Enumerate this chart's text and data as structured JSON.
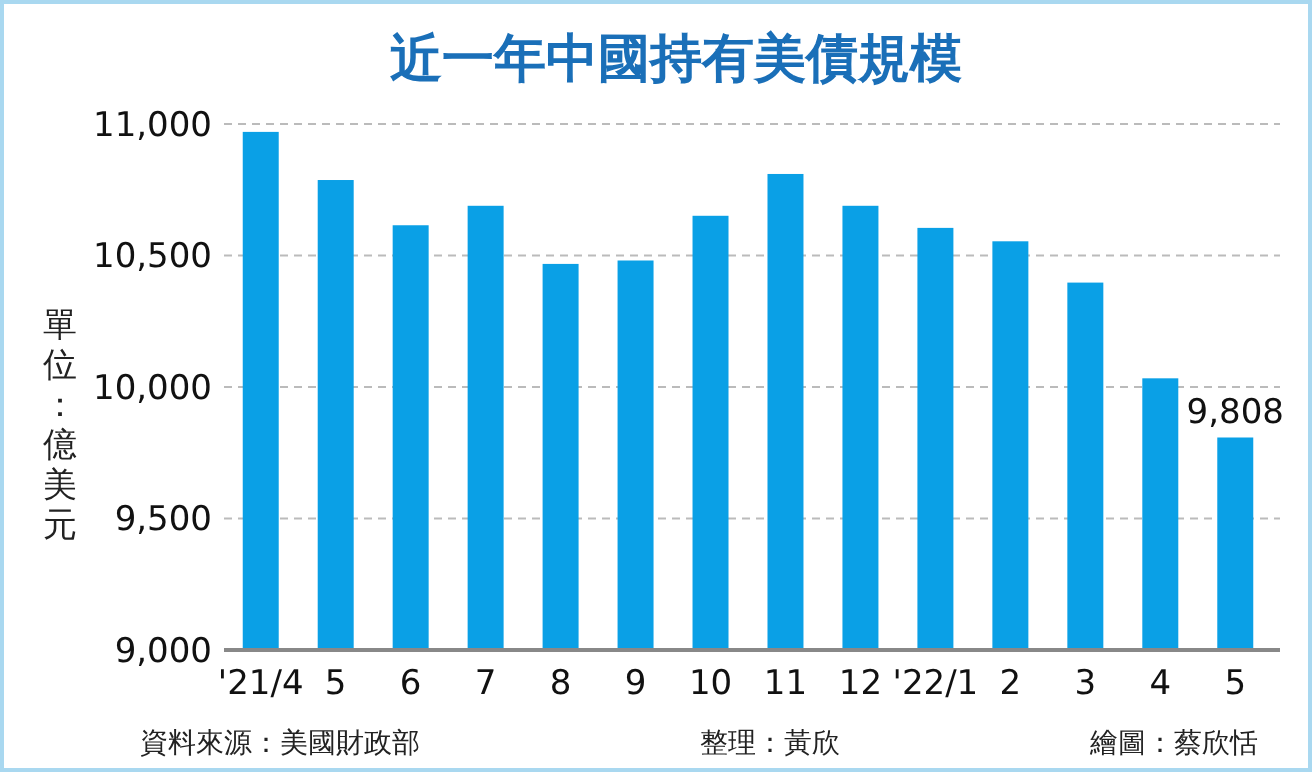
{
  "chart_data": {
    "type": "bar",
    "title": "近一年中國持有美債規模",
    "ylabel": "單位：億美元",
    "categories": [
      "'21/4",
      "5",
      "6",
      "7",
      "8",
      "9",
      "10",
      "11",
      "12",
      "'22/1",
      "2",
      "3",
      "4",
      "5"
    ],
    "values": [
      10970,
      10787,
      10615,
      10689,
      10468,
      10481,
      10651,
      10810,
      10689,
      10605,
      10554,
      10397,
      10033,
      9808
    ],
    "value_labels": [
      null,
      null,
      null,
      null,
      null,
      null,
      null,
      null,
      null,
      null,
      null,
      null,
      null,
      "9,808"
    ],
    "color": "#0aa0e6",
    "ylim": [
      9000,
      11000
    ],
    "yticks": [
      {
        "value": 9000,
        "label": "9,000"
      },
      {
        "value": 9500,
        "label": "9,500"
      },
      {
        "value": 10000,
        "label": "10,000"
      },
      {
        "value": 10500,
        "label": "10,500"
      },
      {
        "value": 11000,
        "label": "11,000"
      }
    ],
    "grid": "y",
    "annotations": [
      "資料來源：美國財政部",
      "整理：黃欣",
      "繪圖：蔡欣恬"
    ]
  }
}
